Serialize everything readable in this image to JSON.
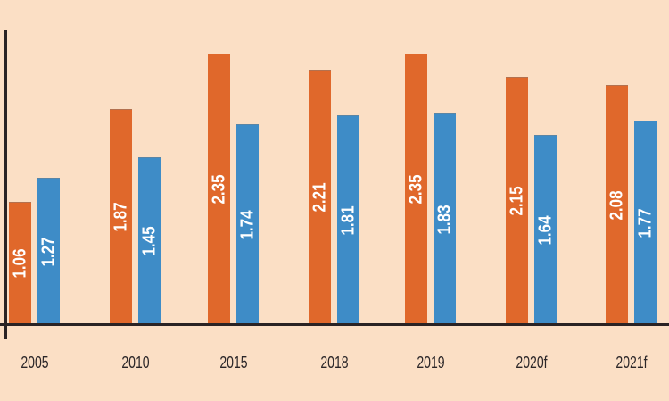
{
  "chart_data": {
    "type": "bar",
    "categories": [
      "2005",
      "2010",
      "2015",
      "2018",
      "2019",
      "2020f",
      "2021f"
    ],
    "series": [
      {
        "name": "orange",
        "color": "#E0682B",
        "values": [
          1.06,
          1.87,
          2.35,
          2.21,
          2.35,
          2.15,
          2.08
        ]
      },
      {
        "name": "blue",
        "color": "#3E8CC7",
        "values": [
          1.27,
          1.45,
          1.74,
          1.81,
          1.83,
          1.64,
          1.77
        ]
      }
    ],
    "title": "",
    "xlabel": "",
    "ylabel": "",
    "ylim": [
      0,
      2.55
    ],
    "grid": false,
    "legend": "none",
    "value_label_style": "inside bar, rotated 90deg counterclockwise, white bold",
    "colors": {
      "background": "#FBDFC5",
      "axis": "#2A2324",
      "tick_label": "#2B2628",
      "value_label": "#FFFFFF"
    }
  }
}
